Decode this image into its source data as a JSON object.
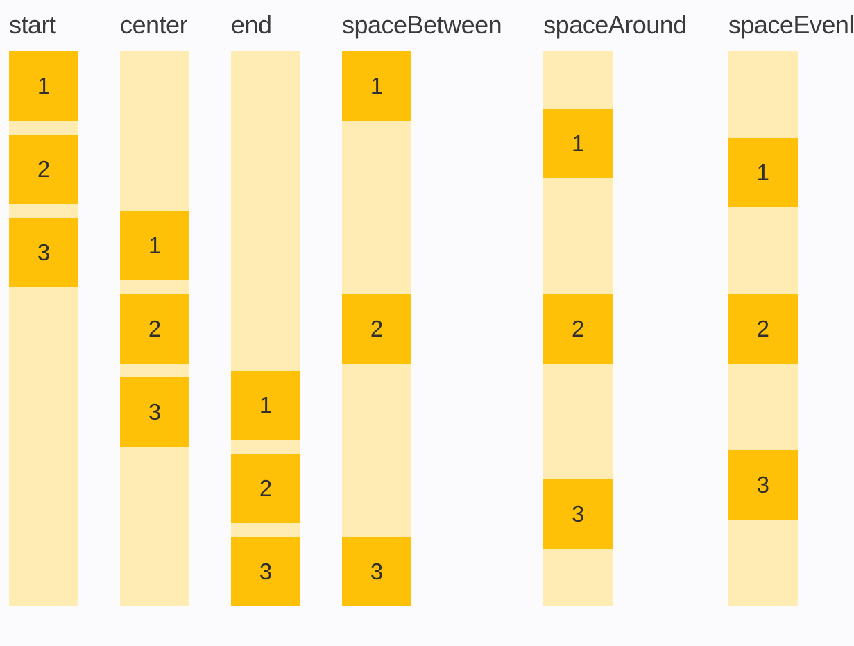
{
  "colors": {
    "background": "#fbfbfe",
    "track": "#ffecb3",
    "item": "#ffc107",
    "label_text": "#3a3a3a",
    "digit_text": "#303030"
  },
  "columns": [
    {
      "label": "start",
      "justify": "flex-start",
      "items": [
        "1",
        "2",
        "3"
      ]
    },
    {
      "label": "center",
      "justify": "center",
      "items": [
        "1",
        "2",
        "3"
      ]
    },
    {
      "label": "end",
      "justify": "flex-end",
      "items": [
        "1",
        "2",
        "3"
      ]
    },
    {
      "label": "spaceBetween",
      "justify": "space-between",
      "items": [
        "1",
        "2",
        "3"
      ]
    },
    {
      "label": "spaceAround",
      "justify": "space-around",
      "items": [
        "1",
        "2",
        "3"
      ]
    },
    {
      "label": "spaceEvenly",
      "justify": "space-evenly",
      "items": [
        "1",
        "2",
        "3"
      ]
    }
  ]
}
